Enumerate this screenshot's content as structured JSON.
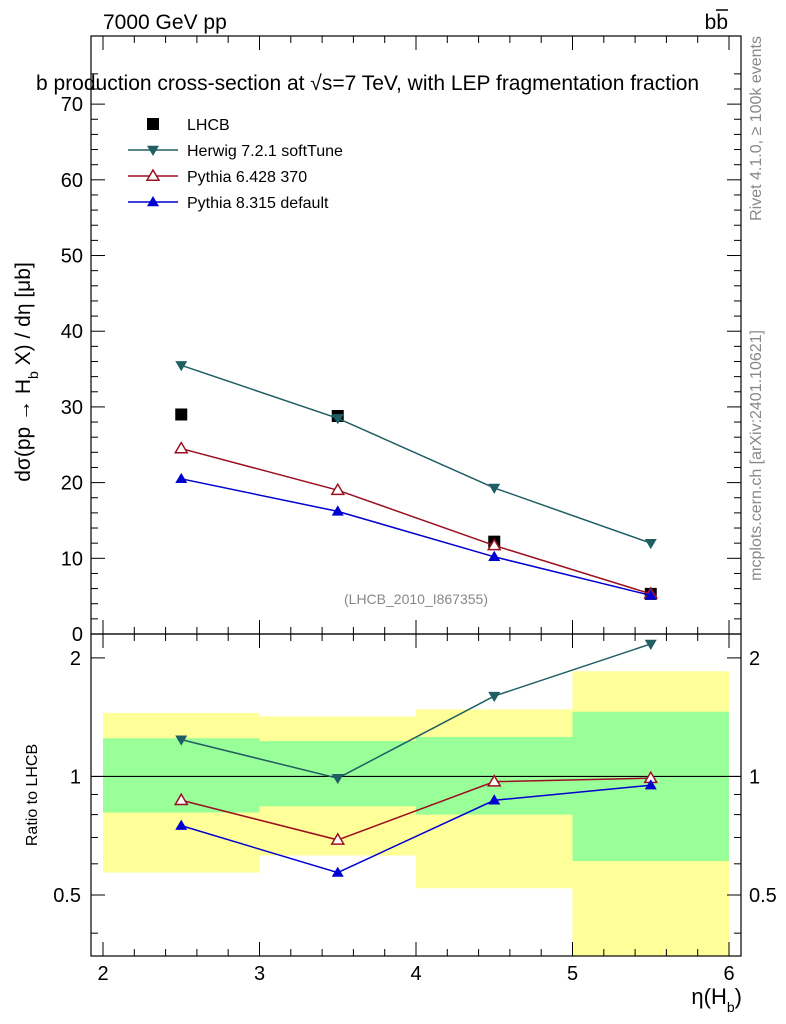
{
  "header": {
    "left": "7000 GeV pp",
    "right": "bb"
  },
  "side_labels": {
    "rivet": "Rivet 4.1.0, ≥ 100k events",
    "mcplots": "mcplots.cern.ch [arXiv:2401.10621]"
  },
  "chart_data": [
    {
      "type": "line",
      "title": "b production cross-section at √s=7 TeV, with LEP fragmentation fraction",
      "ylabel": "dσ(pp → H_b X) / dη [μb]",
      "xlim": [
        2,
        6
      ],
      "ylim": [
        0,
        79
      ],
      "yticks": [
        "0",
        "10",
        "20",
        "30",
        "40",
        "50",
        "60",
        "70"
      ],
      "watermark": "(LHCB_2010_I867355)",
      "x": [
        2.5,
        3.5,
        4.5,
        5.5
      ],
      "series": [
        {
          "name": "LHCB",
          "color": "#000000",
          "marker": "square",
          "line": false,
          "values": [
            29.0,
            28.8,
            12.2,
            5.3
          ]
        },
        {
          "name": "Herwig 7.2.1 softTune",
          "color": "#1f5f63",
          "marker": "triangle-down",
          "line": true,
          "values": [
            35.5,
            28.5,
            19.3,
            12.0
          ]
        },
        {
          "name": "Pythia 6.428 370",
          "color": "#9b1020",
          "marker": "triangle-up-open",
          "line": true,
          "values": [
            24.5,
            19.0,
            11.7,
            5.3
          ]
        },
        {
          "name": "Pythia 8.315 default",
          "color": "#0000d0",
          "marker": "triangle-up",
          "line": true,
          "values": [
            20.5,
            16.2,
            10.2,
            5.1
          ]
        }
      ]
    },
    {
      "type": "line",
      "ylabel": "Ratio to LHCB",
      "xlabel": "η(H_b)",
      "xlim": [
        2,
        6
      ],
      "xticks": [
        "2",
        "3",
        "4",
        "5",
        "6"
      ],
      "ylim": [
        0.35,
        2.3
      ],
      "yticks": [
        "0.5",
        "1",
        "2"
      ],
      "ytick_values": [
        0.5,
        1,
        2
      ],
      "bands": {
        "x_edges": [
          2,
          3,
          4,
          5,
          6
        ],
        "outer_yellow": [
          [
            0.57,
            1.45
          ],
          [
            0.63,
            1.42
          ],
          [
            0.52,
            1.48
          ],
          [
            0.35,
            1.85
          ]
        ],
        "inner_green": [
          [
            0.81,
            1.25
          ],
          [
            0.84,
            1.23
          ],
          [
            0.8,
            1.26
          ],
          [
            0.61,
            1.46
          ]
        ]
      },
      "x": [
        2.5,
        3.5,
        4.5,
        5.5
      ],
      "series": [
        {
          "name": "Herwig 7.2.1 softTune",
          "color": "#1f5f63",
          "marker": "triangle-down",
          "values": [
            1.24,
            0.99,
            1.6,
            2.17
          ]
        },
        {
          "name": "Pythia 6.428 370",
          "color": "#9b1020",
          "marker": "triangle-up-open",
          "values": [
            0.87,
            0.69,
            0.97,
            0.99
          ]
        },
        {
          "name": "Pythia 8.315 default",
          "color": "#0000d0",
          "marker": "triangle-up",
          "values": [
            0.75,
            0.57,
            0.87,
            0.95
          ]
        }
      ]
    }
  ]
}
